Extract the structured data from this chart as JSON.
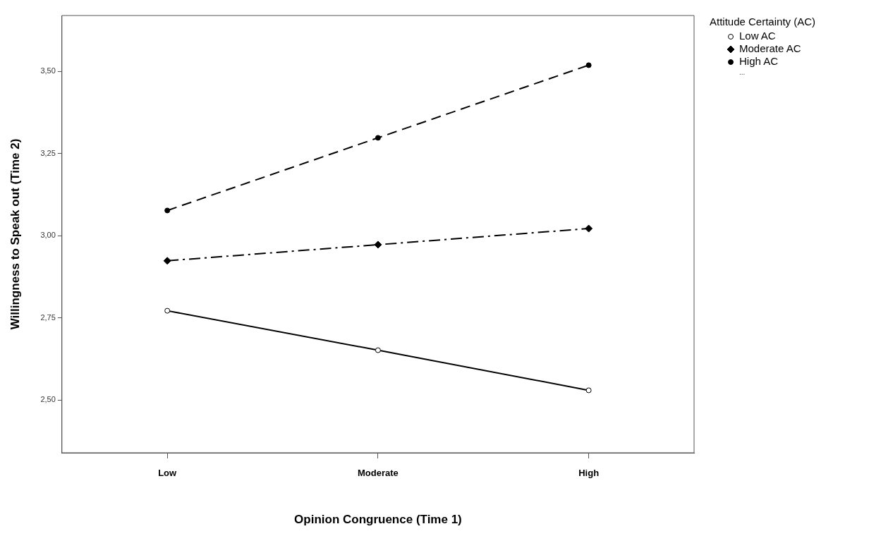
{
  "chart_data": {
    "type": "line",
    "xlabel": "Opinion Congruence (Time 1)",
    "ylabel": "Willingness to Speak out (Time 2)",
    "legend_title": "Attitude Certainty (AC)",
    "legend": "top right",
    "grid": false,
    "categories": [
      "Low",
      "Moderate",
      "High"
    ],
    "ylim": [
      2.34,
      3.67
    ],
    "yticks": [
      {
        "value": 2.5,
        "label": "2,50"
      },
      {
        "value": 2.75,
        "label": "2,75"
      },
      {
        "value": 3,
        "label": "3,00"
      },
      {
        "value": 3.25,
        "label": "3,25"
      },
      {
        "value": 3.5,
        "label": "3,50"
      }
    ],
    "series": [
      {
        "name": "Low AC",
        "color": "#000000",
        "values": [
          2.772,
          2.652,
          2.53
        ],
        "marker": "open-circle",
        "line_style": "solid"
      },
      {
        "name": "Moderate AC",
        "color": "#000000",
        "values": [
          2.924,
          2.973,
          3.022
        ],
        "marker": "diamond",
        "line_style": "dashdot"
      },
      {
        "name": "High AC",
        "color": "#000000",
        "values": [
          3.077,
          3.298,
          3.519
        ],
        "marker": "circle",
        "line_style": "dashed"
      }
    ],
    "annotations": [
      "..."
    ]
  }
}
